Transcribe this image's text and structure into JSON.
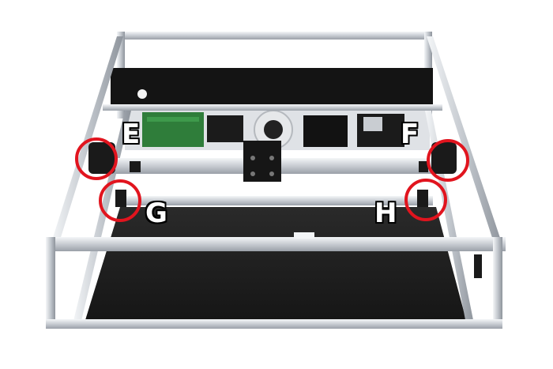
{
  "callouts": {
    "e": "E",
    "f": "F",
    "g": "G",
    "h": "H"
  },
  "colors": {
    "highlight_ring": "#e1141e",
    "aluminum": "#d9dde2",
    "black_panel": "#1a1a1a",
    "base_plate": "#222222",
    "pcb_green": "#2f7d3a"
  }
}
